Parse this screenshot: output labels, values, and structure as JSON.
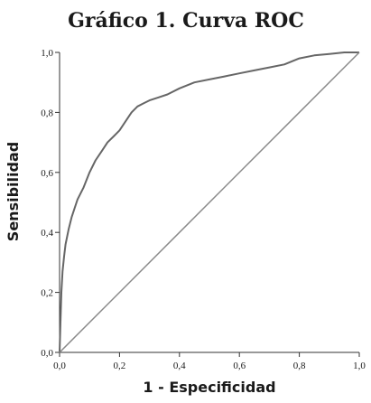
{
  "chart_data": {
    "type": "line",
    "title": "Gráfico 1. Curva ROC",
    "xlabel": "1 - Especificidad",
    "ylabel": "Sensibilidad",
    "xlim": [
      0,
      1
    ],
    "ylim": [
      0,
      1
    ],
    "x_ticks": [
      "0,0",
      "0,2",
      "0,4",
      "0,6",
      "0,8",
      "1,0"
    ],
    "y_ticks": [
      "0,0",
      "0,2",
      "0,4",
      "0,6",
      "0,8",
      "1,0"
    ],
    "grid": false,
    "legend": "none",
    "series": [
      {
        "role": "roc-curve",
        "color": "#666666",
        "x": [
          0,
          0.003,
          0.006,
          0.01,
          0.015,
          0.02,
          0.03,
          0.04,
          0.05,
          0.06,
          0.08,
          0.1,
          0.12,
          0.14,
          0.16,
          0.18,
          0.2,
          0.22,
          0.24,
          0.26,
          0.28,
          0.3,
          0.33,
          0.36,
          0.4,
          0.45,
          0.5,
          0.55,
          0.6,
          0.65,
          0.7,
          0.75,
          0.8,
          0.85,
          0.9,
          0.95,
          1.0
        ],
        "y": [
          0,
          0.1,
          0.2,
          0.27,
          0.32,
          0.36,
          0.41,
          0.45,
          0.48,
          0.51,
          0.55,
          0.6,
          0.64,
          0.67,
          0.7,
          0.72,
          0.74,
          0.77,
          0.8,
          0.82,
          0.83,
          0.84,
          0.85,
          0.86,
          0.88,
          0.9,
          0.91,
          0.92,
          0.93,
          0.94,
          0.95,
          0.96,
          0.98,
          0.99,
          0.995,
          1.0,
          1.0
        ]
      },
      {
        "role": "reference-line",
        "color": "#888888",
        "x": [
          0,
          1
        ],
        "y": [
          0,
          1
        ]
      }
    ]
  }
}
